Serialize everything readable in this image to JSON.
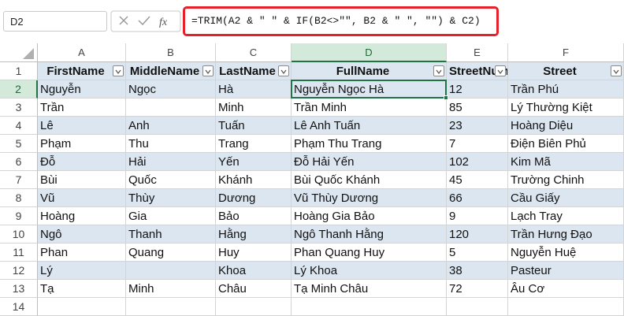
{
  "name_box": "D2",
  "formula": "=TRIM(A2 & \" \" & IF(B2<>\"\", B2 & \" \", \"\") & C2)",
  "column_letters": [
    "A",
    "B",
    "C",
    "D",
    "E",
    "F"
  ],
  "row_numbers": [
    1,
    2,
    3,
    4,
    5,
    6,
    7,
    8,
    9,
    10,
    11,
    12,
    13,
    14
  ],
  "table": {
    "headers": [
      "FirstName",
      "MiddleName",
      "LastName",
      "FullName",
      "StreetNumber",
      "Street"
    ],
    "rows": [
      [
        "Nguyễn",
        "Ngọc",
        "Hà",
        "Nguyễn Ngọc Hà",
        12,
        "Trần Phú"
      ],
      [
        "Trần",
        null,
        "Minh",
        "Trần Minh",
        85,
        "Lý Thường Kiệt"
      ],
      [
        "Lê",
        "Anh",
        "Tuấn",
        "Lê Anh Tuấn",
        23,
        "Hoàng Diệu"
      ],
      [
        "Phạm",
        "Thu",
        "Trang",
        "Phạm Thu Trang",
        7,
        "Điện Biên Phủ"
      ],
      [
        "Đỗ",
        "Hải",
        "Yến",
        "Đỗ Hải Yến",
        102,
        "Kim Mã"
      ],
      [
        "Bùi",
        "Quốc",
        "Khánh",
        "Bùi Quốc Khánh",
        45,
        "Trường Chinh"
      ],
      [
        "Vũ",
        "Thùy",
        "Dương",
        "Vũ Thùy Dương",
        66,
        "Cầu Giấy"
      ],
      [
        "Hoàng",
        "Gia",
        "Bảo",
        "Hoàng Gia Bảo",
        9,
        "Lạch Tray"
      ],
      [
        "Ngô",
        "Thanh",
        "Hằng",
        "Ngô Thanh Hằng",
        120,
        "Trần Hưng Đạo"
      ],
      [
        "Phan",
        "Quang",
        "Huy",
        "Phan Quang Huy",
        5,
        "Nguyễn Huệ"
      ],
      [
        "Lý",
        null,
        "Khoa",
        "Lý Khoa",
        38,
        "Pasteur"
      ],
      [
        "Tạ",
        "Minh",
        "Châu",
        "Tạ Minh Châu",
        72,
        "Âu Cơ"
      ]
    ]
  }
}
